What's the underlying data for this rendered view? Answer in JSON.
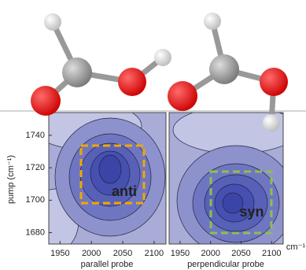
{
  "chart_data": [
    {
      "type": "contour",
      "xlabel": "parallel probe",
      "ylabel": "pump (cm⁻¹)",
      "annotation": "anti",
      "annotation_color": "#f0a800",
      "xlim": [
        1932,
        2119
      ],
      "xticks": [
        1950,
        2000,
        2050,
        2100
      ],
      "ylim": [
        1673,
        1754
      ],
      "yticks": [
        1680,
        1700,
        1720,
        1740
      ]
    },
    {
      "type": "contour",
      "xlabel": "perpendicular probe",
      "xunit": "cm⁻¹",
      "annotation": "syn",
      "annotation_color": "#8cc050",
      "xlim": [
        1932,
        2119
      ],
      "xticks": [
        1950,
        2000,
        2050,
        2100
      ],
      "ylim": [
        1673,
        1754
      ]
    }
  ]
}
